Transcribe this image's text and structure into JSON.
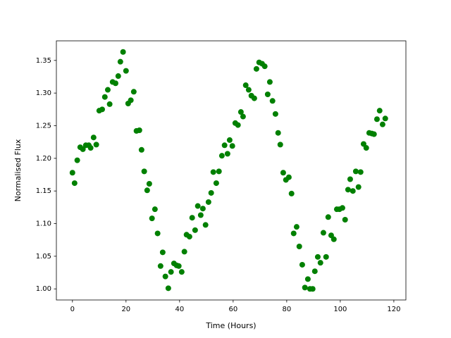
{
  "chart_data": {
    "type": "scatter",
    "xlabel": "Time (Hours)",
    "ylabel": "Normalised Flux",
    "color": "#008000",
    "xlim": [
      -6,
      124.5
    ],
    "ylim": [
      0.983,
      1.38
    ],
    "xticks": [
      0,
      20,
      40,
      60,
      80,
      100,
      120
    ],
    "yticks": [
      {
        "value": 1.0,
        "label": "1.00"
      },
      1.05,
      {
        "value": 1.1,
        "label": "1.10"
      },
      1.15,
      {
        "value": 1.2,
        "label": "1.20"
      },
      1.25,
      {
        "value": 1.3,
        "label": "1.30"
      },
      1.35
    ],
    "x": [
      0,
      0.8,
      1.8,
      2.9,
      3.9,
      5.0,
      6.1,
      6.8,
      7.9,
      8.9,
      10,
      11.1,
      12.1,
      13.2,
      13.9,
      15,
      16.1,
      17.1,
      17.9,
      18.9,
      20,
      20.8,
      21.8,
      22.9,
      23.9,
      25,
      25.8,
      26.8,
      27.9,
      28.7,
      29.7,
      30.8,
      31.8,
      32.9,
      33.7,
      34.7,
      35.8,
      36.8,
      37.9,
      38.9,
      39.7,
      40.8,
      41.8,
      42.6,
      43.7,
      44.7,
      45.8,
      46.8,
      47.9,
      48.7,
      49.7,
      50.8,
      51.8,
      52.6,
      53.7,
      54.7,
      55.8,
      56.8,
      57.9,
      58.7,
      59.7,
      60.8,
      61.8,
      62.9,
      63.7,
      64.7,
      65.8,
      66.8,
      67.9,
      68.7,
      69.7,
      70.8,
      71.8,
      72.9,
      73.7,
      74.7,
      75.8,
      76.8,
      77.6,
      78.7,
      79.7,
      80.8,
      81.8,
      82.6,
      83.7,
      84.7,
      85.8,
      86.8,
      87.9,
      88.7,
      89.7,
      90.5,
      91.6,
      92.6,
      93.7,
      94.7,
      95.5,
      96.6,
      97.6,
      98.7,
      99.7,
      100.8,
      101.8,
      102.9,
      103.7,
      104.7,
      105.8,
      106.8,
      107.6,
      108.7,
      109.7,
      110.8,
      111.8,
      112.6,
      113.7,
      114.7,
      115.8,
      116.8
    ],
    "values": [
      1.178,
      1.162,
      1.197,
      1.217,
      1.214,
      1.22,
      1.22,
      1.216,
      1.232,
      1.221,
      1.273,
      1.275,
      1.294,
      1.305,
      1.283,
      1.317,
      1.315,
      1.326,
      1.348,
      1.363,
      1.334,
      1.284,
      1.289,
      1.302,
      1.242,
      1.243,
      1.213,
      1.18,
      1.151,
      1.161,
      1.108,
      1.122,
      1.085,
      1.035,
      1.056,
      1.019,
      1.001,
      1.026,
      1.039,
      1.036,
      1.035,
      1.026,
      1.057,
      1.083,
      1.08,
      1.109,
      1.09,
      1.127,
      1.113,
      1.123,
      1.098,
      1.133,
      1.147,
      1.179,
      1.162,
      1.18,
      1.204,
      1.22,
      1.207,
      1.228,
      1.219,
      1.254,
      1.251,
      1.271,
      1.264,
      1.312,
      1.305,
      1.296,
      1.292,
      1.337,
      1.347,
      1.345,
      1.341,
      1.298,
      1.317,
      1.288,
      1.268,
      1.239,
      1.221,
      1.178,
      1.167,
      1.171,
      1.146,
      1.085,
      1.095,
      1.065,
      1.037,
      1.002,
      1.015,
      1.0,
      1.0,
      1.027,
      1.049,
      1.04,
      1.086,
      1.049,
      1.11,
      1.082,
      1.076,
      1.122,
      1.122,
      1.124,
      1.106,
      1.152,
      1.168,
      1.15,
      1.18,
      1.156,
      1.179,
      1.222,
      1.216,
      1.239,
      1.238,
      1.237,
      1.26,
      1.273,
      1.252,
      1.261
    ]
  }
}
